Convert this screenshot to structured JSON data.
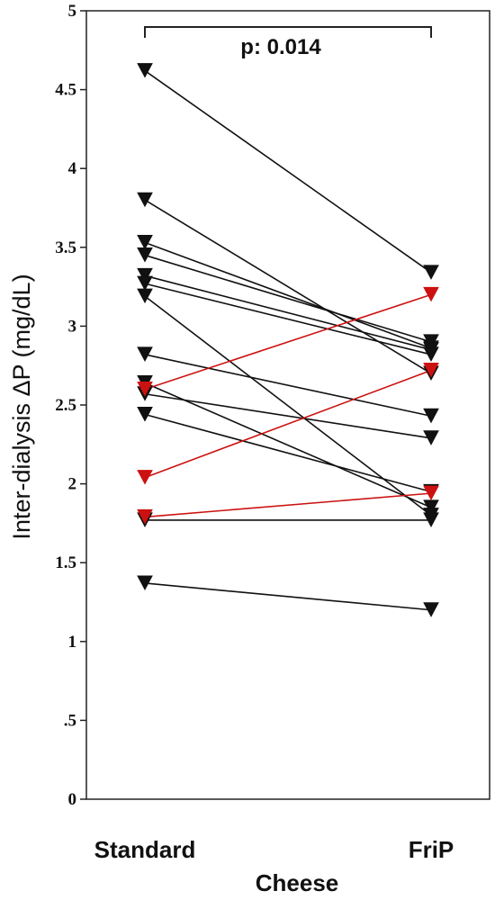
{
  "chart_data": {
    "type": "line",
    "title": "",
    "xlabel": "Cheese",
    "ylabel": "Inter-dialysis ΔP (mg/dL)",
    "categories": [
      "Standard",
      "FriP"
    ],
    "ylim": [
      0,
      5
    ],
    "yticks": [
      {
        "value": 0,
        "label": "0"
      },
      {
        "value": 0.5,
        "label": ".5"
      },
      {
        "value": 1,
        "label": "1"
      },
      {
        "value": 1.5,
        "label": "1.5"
      },
      {
        "value": 2,
        "label": "2"
      },
      {
        "value": 2.5,
        "label": "2.5"
      },
      {
        "value": 3,
        "label": "3"
      },
      {
        "value": 3.5,
        "label": "3.5"
      },
      {
        "value": 4,
        "label": "4"
      },
      {
        "value": 4.5,
        "label": "4.5"
      },
      {
        "value": 5,
        "label": "5"
      }
    ],
    "annotation": "p: 0.014",
    "marker": "triangle-down",
    "grid": false,
    "colors": {
      "decrease": "#111111",
      "increase": "#cc1111"
    },
    "series": [
      {
        "values": [
          4.62,
          3.34
        ],
        "color": "#111111"
      },
      {
        "values": [
          3.8,
          2.7
        ],
        "color": "#111111"
      },
      {
        "values": [
          3.53,
          2.86
        ],
        "color": "#111111"
      },
      {
        "values": [
          3.45,
          2.9
        ],
        "color": "#111111"
      },
      {
        "values": [
          3.32,
          2.85
        ],
        "color": "#111111"
      },
      {
        "values": [
          3.27,
          2.82
        ],
        "color": "#111111"
      },
      {
        "values": [
          3.19,
          1.8
        ],
        "color": "#111111"
      },
      {
        "values": [
          2.82,
          2.43
        ],
        "color": "#111111"
      },
      {
        "values": [
          2.64,
          1.85
        ],
        "color": "#111111"
      },
      {
        "values": [
          2.57,
          2.29
        ],
        "color": "#111111"
      },
      {
        "values": [
          2.44,
          1.95
        ],
        "color": "#111111"
      },
      {
        "values": [
          1.77,
          1.77
        ],
        "color": "#111111"
      },
      {
        "values": [
          1.37,
          1.2
        ],
        "color": "#111111"
      },
      {
        "values": [
          2.6,
          3.2
        ],
        "color": "#cc1111"
      },
      {
        "values": [
          2.04,
          2.72
        ],
        "color": "#cc1111"
      },
      {
        "values": [
          1.79,
          1.94
        ],
        "color": "#cc1111"
      }
    ]
  }
}
